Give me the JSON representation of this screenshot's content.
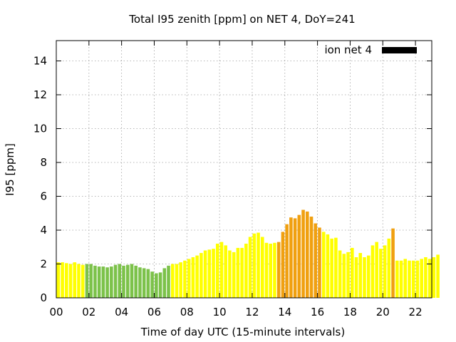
{
  "chart_data": {
    "type": "bar",
    "title": "Total I95 zenith [ppm] on NET 4, DoY=241",
    "xlabel": "Time of day UTC (15-minute intervals)",
    "ylabel": "I95 [ppm]",
    "xlim": [
      0,
      23
    ],
    "ylim": [
      0,
      15.2
    ],
    "x_ticks": [
      0,
      2,
      4,
      6,
      8,
      10,
      12,
      14,
      16,
      18,
      20,
      22
    ],
    "x_tick_labels": [
      "00",
      "02",
      "04",
      "06",
      "08",
      "10",
      "12",
      "14",
      "16",
      "18",
      "20",
      "22"
    ],
    "y_ticks": [
      0,
      2,
      4,
      6,
      8,
      10,
      12,
      14
    ],
    "y_tick_labels": [
      "0",
      "2",
      "4",
      "6",
      "8",
      "10",
      "12",
      "14"
    ],
    "grid": true,
    "legend_position": "top-right",
    "interval_hours": 0.25,
    "legend": [
      {
        "label": "ion net 4",
        "color": "#000000"
      }
    ],
    "category_colors": {
      "y": "#ffff00",
      "g": "#7cc24a",
      "o": "#f0a010"
    },
    "values": [
      2.1,
      2.1,
      2.05,
      2.0,
      2.1,
      2.0,
      1.95,
      2.0,
      2.0,
      1.9,
      1.85,
      1.85,
      1.8,
      1.85,
      1.95,
      2.0,
      1.9,
      1.95,
      2.0,
      1.9,
      1.8,
      1.75,
      1.7,
      1.55,
      1.45,
      1.5,
      1.75,
      1.9,
      2.0,
      2.0,
      2.1,
      2.2,
      2.3,
      2.4,
      2.5,
      2.65,
      2.8,
      2.85,
      2.9,
      3.2,
      3.3,
      3.1,
      2.8,
      2.7,
      2.95,
      2.95,
      3.2,
      3.6,
      3.8,
      3.85,
      3.6,
      3.25,
      3.2,
      3.25,
      3.3,
      3.9,
      4.35,
      4.75,
      4.7,
      4.9,
      5.2,
      5.1,
      4.8,
      4.4,
      4.15,
      3.9,
      3.75,
      3.5,
      3.55,
      2.8,
      2.6,
      2.7,
      2.95,
      2.4,
      2.65,
      2.4,
      2.5,
      3.1,
      3.3,
      2.9,
      3.1,
      3.5,
      4.1,
      2.2,
      2.2,
      2.3,
      2.2,
      2.2,
      2.2,
      2.3,
      2.4,
      2.3,
      2.4,
      2.55
    ],
    "bar_categories": "yyyyyyygggggggggggggggggggggyyyyyyyyyyyyyyyyyyyyyyyyyyoooooooooooyyyyyyyyyyyyyyyyyoyyyyyyyyyyy"
  }
}
